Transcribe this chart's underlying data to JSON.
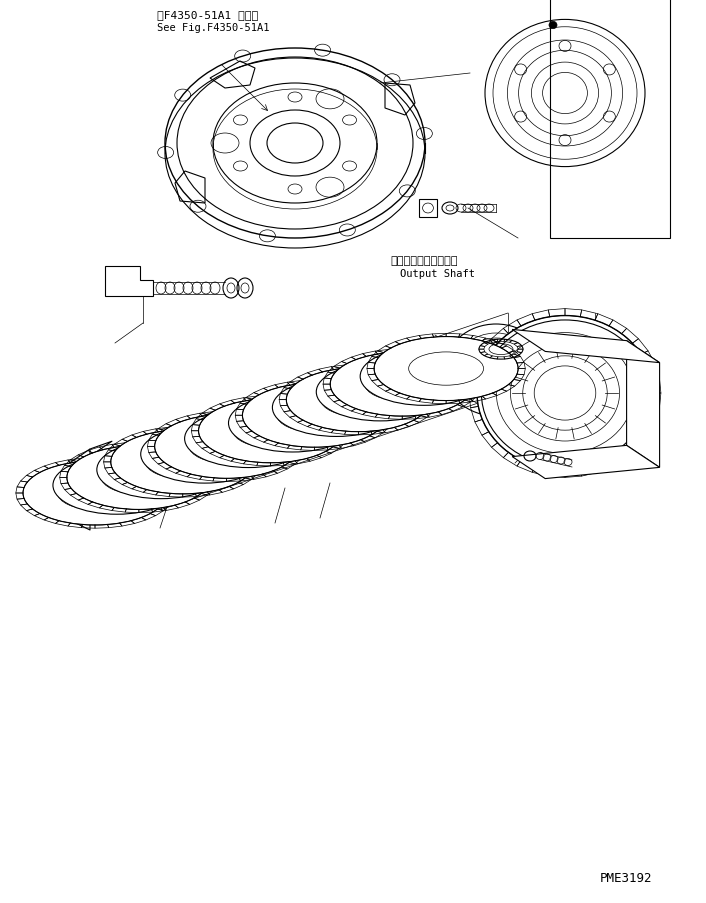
{
  "bg_color": "#ffffff",
  "line_color": "#000000",
  "text_color": "#000000",
  "title_jp": "第F4350-51A1 図参照",
  "title_en": "See Fig.F4350-51A1",
  "label_jp": "アウトプットシャフト",
  "label_en": "Output Shaft",
  "watermark": "PME3192",
  "fig_width": 7.06,
  "fig_height": 9.04,
  "dpi": 100
}
